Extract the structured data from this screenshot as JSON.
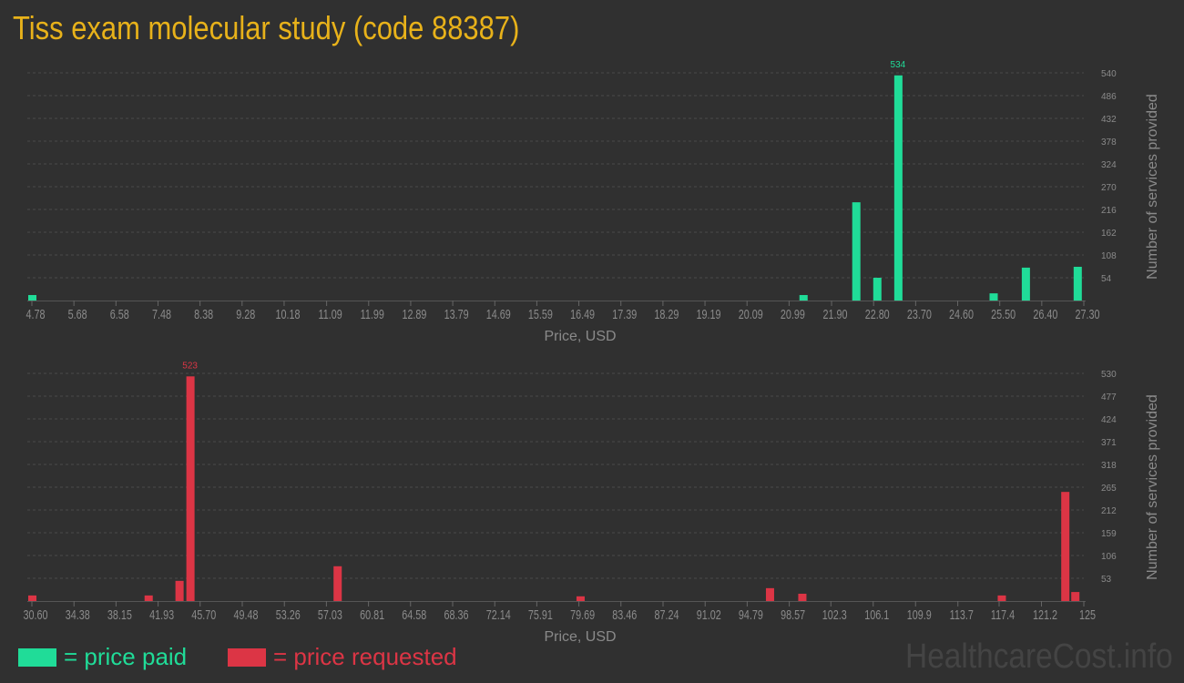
{
  "title": "Tiss exam molecular study (code 88387)",
  "legend": {
    "paid_label": "= price paid",
    "requested_label": "= price requested"
  },
  "watermark": "HealthcareCost.info",
  "colors": {
    "paid": "#20dc98",
    "requested": "#dc3545",
    "title": "#e8b21a"
  },
  "chart_data": [
    {
      "type": "bar",
      "xlabel": "Price, USD",
      "ylabel": "Number of services provided",
      "xlim": [
        4.78,
        27.3
      ],
      "ylim": [
        0,
        540
      ],
      "grid": true,
      "color": "#20dc98",
      "xticks": [
        "4.78",
        "5.68",
        "6.58",
        "7.48",
        "8.38",
        "9.28",
        "10.18",
        "11.09",
        "11.99",
        "12.89",
        "13.79",
        "14.69",
        "15.59",
        "16.49",
        "17.39",
        "18.29",
        "19.19",
        "20.09",
        "20.99",
        "21.90",
        "22.80",
        "23.70",
        "24.60",
        "25.50",
        "26.40",
        "27.30"
      ],
      "yticks": [
        54,
        108,
        162,
        216,
        270,
        324,
        378,
        432,
        486,
        540
      ],
      "x": [
        4.78,
        21.29,
        22.42,
        22.87,
        23.32,
        25.36,
        26.05,
        27.16
      ],
      "values": [
        13,
        13,
        233,
        54,
        534,
        17,
        78,
        80
      ],
      "max_label": "534"
    },
    {
      "type": "bar",
      "xlabel": "Price, USD",
      "ylabel": "Number of services provided",
      "xlim": [
        30.6,
        125
      ],
      "ylim": [
        0,
        530
      ],
      "grid": true,
      "color": "#dc3545",
      "xticks": [
        "30.60",
        "34.38",
        "38.15",
        "41.93",
        "45.70",
        "49.48",
        "53.26",
        "57.03",
        "60.81",
        "64.58",
        "68.36",
        "72.14",
        "75.91",
        "79.69",
        "83.46",
        "87.24",
        "91.02",
        "94.79",
        "98.57",
        "102.3",
        "106.1",
        "109.9",
        "113.7",
        "117.4",
        "121.2",
        "125"
      ],
      "yticks": [
        53,
        106,
        159,
        212,
        265,
        318,
        371,
        424,
        477,
        530
      ],
      "x": [
        30.6,
        41.04,
        43.81,
        44.79,
        58.0,
        79.8,
        96.8,
        99.7,
        117.6,
        123.3,
        124.2
      ],
      "values": [
        13,
        13,
        47,
        523,
        81,
        11,
        30,
        17,
        13,
        254,
        21
      ],
      "max_label": "523"
    }
  ]
}
